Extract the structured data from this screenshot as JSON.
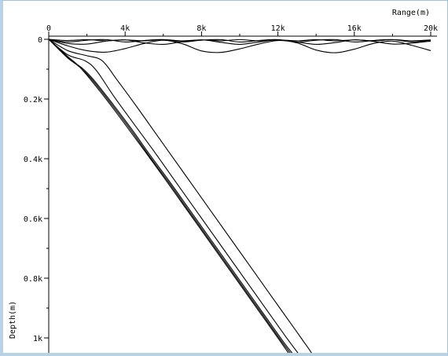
{
  "chart_data": {
    "type": "line",
    "title": "",
    "xlabel": "Range(m)",
    "ylabel": "Depth(m)",
    "x_axis_position": "top",
    "y_axis_inverted": true,
    "xlim": [
      0,
      20000
    ],
    "ylim": [
      0,
      1050
    ],
    "x_ticks": [
      {
        "value": 0,
        "label": "0"
      },
      {
        "value": 4000,
        "label": "4k"
      },
      {
        "value": 8000,
        "label": "8k"
      },
      {
        "value": 12000,
        "label": "12k"
      },
      {
        "value": 16000,
        "label": "16k"
      },
      {
        "value": 20000,
        "label": "20k"
      }
    ],
    "y_ticks": [
      {
        "value": 0,
        "label": "0"
      },
      {
        "value": 200,
        "label": "0.2k"
      },
      {
        "value": 400,
        "label": "0.4k"
      },
      {
        "value": 600,
        "label": "0.6k"
      },
      {
        "value": 800,
        "label": "0.8k"
      },
      {
        "value": 1000,
        "label": "1k"
      }
    ],
    "grid": false,
    "line_color": "#000000",
    "series": [
      {
        "points": [
          [
            0,
            0
          ],
          [
            1000,
            4
          ],
          [
            2000,
            1
          ],
          [
            3000,
            5
          ],
          [
            4000,
            2
          ],
          [
            5000,
            5
          ],
          [
            6000,
            1
          ],
          [
            7000,
            5
          ],
          [
            8000,
            2
          ],
          [
            9000,
            5
          ],
          [
            10000,
            1
          ],
          [
            11000,
            5
          ],
          [
            12000,
            2
          ],
          [
            13000,
            5
          ],
          [
            14000,
            1
          ],
          [
            15000,
            5
          ],
          [
            16000,
            2
          ],
          [
            17000,
            5
          ],
          [
            18000,
            1
          ],
          [
            19000,
            5
          ],
          [
            20000,
            2
          ]
        ]
      },
      {
        "points": [
          [
            0,
            0
          ],
          [
            1000,
            9
          ],
          [
            2000,
            3
          ],
          [
            3000,
            1
          ],
          [
            4000,
            9
          ],
          [
            5000,
            4
          ],
          [
            6000,
            1
          ],
          [
            7000,
            9
          ],
          [
            8000,
            3
          ],
          [
            9000,
            1
          ],
          [
            10000,
            9
          ],
          [
            11000,
            4
          ],
          [
            12000,
            1
          ],
          [
            13000,
            9
          ],
          [
            14000,
            3
          ],
          [
            15000,
            1
          ],
          [
            16000,
            9
          ],
          [
            17000,
            4
          ],
          [
            18000,
            1
          ],
          [
            19000,
            9
          ],
          [
            20000,
            3
          ]
        ]
      },
      {
        "points": [
          [
            0,
            0
          ],
          [
            1000,
            14
          ],
          [
            2000,
            16
          ],
          [
            3000,
            6
          ],
          [
            4000,
            2
          ],
          [
            5000,
            12
          ],
          [
            6000,
            17
          ],
          [
            7000,
            8
          ],
          [
            8000,
            2
          ],
          [
            9000,
            10
          ],
          [
            10000,
            17
          ],
          [
            11000,
            9
          ],
          [
            12000,
            2
          ],
          [
            13000,
            9
          ],
          [
            14000,
            17
          ],
          [
            15000,
            11
          ],
          [
            16000,
            2
          ],
          [
            17000,
            7
          ],
          [
            18000,
            16
          ],
          [
            19000,
            13
          ],
          [
            20000,
            6
          ]
        ]
      },
      {
        "points": [
          [
            0,
            0
          ],
          [
            1000,
            22
          ],
          [
            2000,
            38
          ],
          [
            3000,
            43
          ],
          [
            4000,
            31
          ],
          [
            5000,
            14
          ],
          [
            6000,
            3
          ],
          [
            7000,
            15
          ],
          [
            8000,
            39
          ],
          [
            9000,
            44
          ],
          [
            10000,
            32
          ],
          [
            11000,
            16
          ],
          [
            12000,
            4
          ],
          [
            13000,
            12
          ],
          [
            14000,
            36
          ],
          [
            15000,
            45
          ],
          [
            16000,
            33
          ],
          [
            17000,
            14
          ],
          [
            18000,
            6
          ],
          [
            19000,
            20
          ],
          [
            20000,
            38
          ]
        ]
      },
      {
        "points": [
          [
            0,
            0
          ],
          [
            1000,
            58
          ],
          [
            1500,
            85
          ],
          [
            2000,
            120
          ],
          [
            3000,
            200
          ],
          [
            4000,
            285
          ],
          [
            5000,
            372
          ],
          [
            6000,
            460
          ],
          [
            7000,
            550
          ],
          [
            8000,
            640
          ],
          [
            9000,
            730
          ],
          [
            10000,
            820
          ],
          [
            11000,
            910
          ],
          [
            12000,
            1000
          ],
          [
            12600,
            1055
          ]
        ]
      },
      {
        "points": [
          [
            0,
            0
          ],
          [
            1000,
            62
          ],
          [
            1600,
            92
          ],
          [
            2200,
            130
          ],
          [
            3200,
            210
          ],
          [
            4200,
            295
          ],
          [
            5200,
            385
          ],
          [
            6200,
            472
          ],
          [
            7200,
            562
          ],
          [
            8200,
            652
          ],
          [
            9200,
            742
          ],
          [
            10200,
            832
          ],
          [
            11200,
            922
          ],
          [
            12200,
            1012
          ],
          [
            12700,
            1055
          ]
        ]
      },
      {
        "points": [
          [
            0,
            0
          ],
          [
            1000,
            63
          ],
          [
            1700,
            94
          ],
          [
            2300,
            132
          ],
          [
            3300,
            212
          ],
          [
            4300,
            297
          ],
          [
            5300,
            387
          ],
          [
            6300,
            474
          ],
          [
            7300,
            564
          ],
          [
            8300,
            654
          ],
          [
            9300,
            744
          ],
          [
            10300,
            834
          ],
          [
            11300,
            924
          ],
          [
            12300,
            1014
          ],
          [
            12800,
            1055
          ]
        ]
      },
      {
        "points": [
          [
            0,
            0
          ],
          [
            1000,
            52
          ],
          [
            1900,
            72
          ],
          [
            2500,
            105
          ],
          [
            3400,
            190
          ],
          [
            4400,
            278
          ],
          [
            5400,
            365
          ],
          [
            6400,
            455
          ],
          [
            7400,
            545
          ],
          [
            8400,
            635
          ],
          [
            9400,
            725
          ],
          [
            10400,
            815
          ],
          [
            11400,
            905
          ],
          [
            12400,
            995
          ],
          [
            13100,
            1055
          ]
        ]
      },
      {
        "points": [
          [
            0,
            0
          ],
          [
            1000,
            38
          ],
          [
            2000,
            55
          ],
          [
            2800,
            72
          ],
          [
            3600,
            138
          ],
          [
            4600,
            225
          ],
          [
            5600,
            315
          ],
          [
            6600,
            405
          ],
          [
            7600,
            495
          ],
          [
            8600,
            585
          ],
          [
            9600,
            675
          ],
          [
            10600,
            765
          ],
          [
            11600,
            855
          ],
          [
            12600,
            945
          ],
          [
            13600,
            1035
          ],
          [
            13800,
            1055
          ]
        ]
      }
    ]
  }
}
